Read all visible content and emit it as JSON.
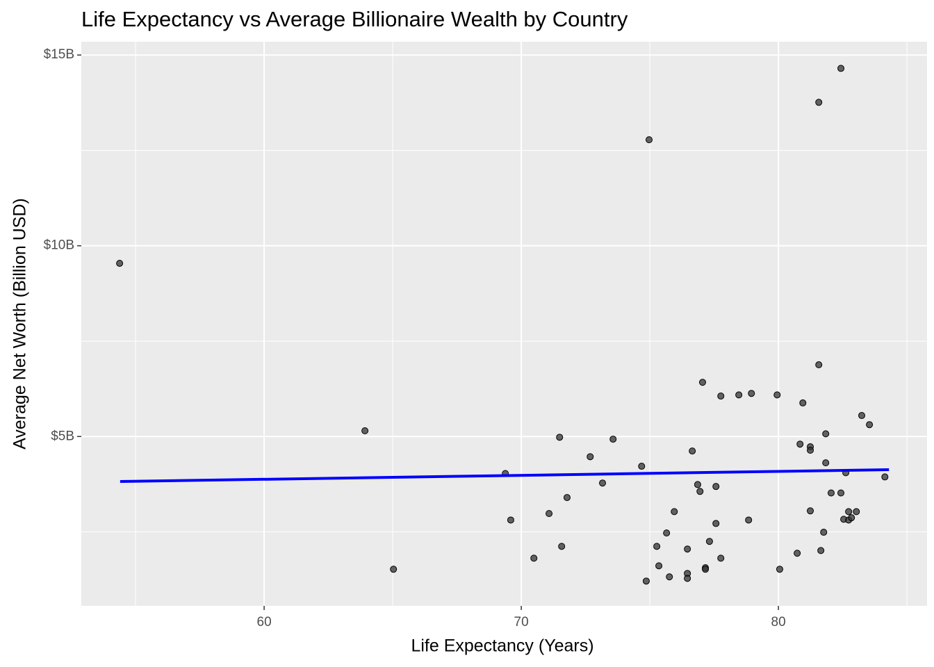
{
  "chart_data": {
    "type": "scatter",
    "title": "Life Expectancy vs Average Billionaire Wealth by Country",
    "x_label": "Life Expectancy (Years)",
    "y_label": "Average Net Worth (Billion USD)",
    "xlim": [
      52.89,
      85.78
    ],
    "ylim": [
      0.56,
      15.35
    ],
    "xticks": [
      60,
      70,
      80
    ],
    "yticks": [
      {
        "value": 5,
        "label": "$5B"
      },
      {
        "value": 10,
        "label": "$10B"
      },
      {
        "value": 15,
        "label": "$15B"
      }
    ],
    "minor_xticks": [
      55,
      65,
      75,
      85
    ],
    "minor_yticks": [
      2.5,
      7.5,
      12.5
    ],
    "grid": true,
    "series": [
      {
        "color": "#333333",
        "x": [
          54.38,
          63.92,
          65.03,
          74.97,
          81.57,
          82.43,
          69.38,
          69.59,
          70.49,
          71.08,
          71.49,
          71.57,
          71.78,
          72.68,
          73.16,
          73.57,
          74.68,
          74.86,
          75.27,
          75.35,
          75.65,
          75.76,
          75.95,
          76.46,
          76.46,
          76.46,
          76.65,
          76.86,
          76.95,
          77.05,
          77.16,
          77.16,
          77.32,
          77.57,
          77.57,
          77.76,
          77.76,
          78.46,
          78.84,
          78.95,
          79.95,
          80.05,
          80.73,
          80.84,
          80.95,
          81.24,
          81.24,
          81.24,
          81.57,
          81.65,
          81.76,
          81.84,
          81.84,
          82.05,
          82.43,
          82.54,
          82.62,
          82.73,
          82.73,
          82.84,
          83.03,
          83.24,
          83.54,
          84.14
        ],
        "values": [
          9.54,
          5.15,
          1.52,
          12.78,
          13.76,
          14.65,
          4.03,
          2.81,
          1.81,
          2.98,
          4.98,
          2.12,
          3.4,
          4.47,
          3.78,
          4.93,
          4.22,
          1.21,
          2.12,
          1.61,
          2.47,
          1.32,
          3.03,
          2.05,
          1.41,
          1.28,
          4.62,
          3.74,
          3.56,
          6.42,
          1.56,
          1.52,
          2.25,
          2.72,
          3.69,
          6.06,
          1.81,
          6.09,
          2.81,
          6.13,
          6.09,
          1.52,
          1.94,
          4.8,
          5.88,
          4.73,
          4.64,
          3.05,
          6.88,
          2.01,
          2.49,
          5.07,
          4.31,
          3.52,
          3.52,
          2.83,
          4.05,
          2.81,
          3.03,
          2.87,
          3.03,
          5.55,
          5.31,
          3.94
        ]
      }
    ],
    "trend": {
      "color": "#0000ff",
      "x": [
        54.4,
        84.3
      ],
      "values": [
        3.82,
        4.13
      ]
    }
  }
}
